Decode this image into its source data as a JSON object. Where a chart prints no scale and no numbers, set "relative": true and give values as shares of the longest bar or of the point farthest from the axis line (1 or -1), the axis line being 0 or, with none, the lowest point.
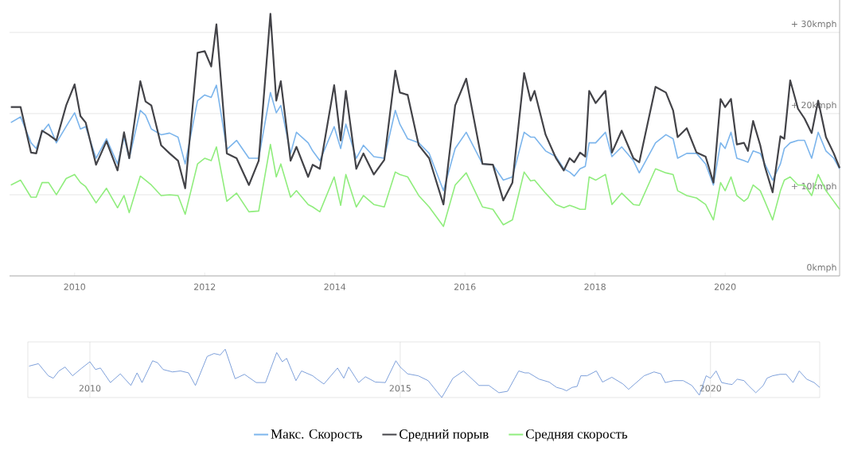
{
  "chart_data": [
    {
      "type": "line",
      "x": [
        2009.02,
        2009.17,
        2009.33,
        2009.41,
        2009.5,
        2009.6,
        2009.72,
        2009.87,
        2010.0,
        2010.09,
        2010.17,
        2010.33,
        2010.49,
        2010.66,
        2010.76,
        2010.84,
        2011.01,
        2011.09,
        2011.18,
        2011.33,
        2011.46,
        2011.59,
        2011.7,
        2011.89,
        2012.0,
        2012.1,
        2012.18,
        2012.34,
        2012.49,
        2012.68,
        2012.83,
        2013.01,
        2013.1,
        2013.17,
        2013.32,
        2013.41,
        2013.59,
        2013.66,
        2013.77,
        2013.99,
        2014.09,
        2014.17,
        2014.33,
        2014.44,
        2014.6,
        2014.76,
        2014.93,
        2015.0,
        2015.12,
        2015.29,
        2015.45,
        2015.67,
        2015.85,
        2016.02,
        2016.27,
        2016.43,
        2016.59,
        2016.73,
        2016.91,
        2017.01,
        2017.07,
        2017.24,
        2017.4,
        2017.52,
        2017.61,
        2017.68,
        2017.77,
        2017.85,
        2017.91,
        2018.01,
        2018.16,
        2018.26,
        2018.41,
        2018.59,
        2018.68,
        2018.93,
        2019.09,
        2019.2,
        2019.27,
        2019.41,
        2019.56,
        2019.7,
        2019.82,
        2019.93,
        2020.0,
        2020.09,
        2020.18,
        2020.29,
        2020.35,
        2020.43,
        2020.54,
        2020.61,
        2020.73,
        2020.85,
        2020.91,
        2021.0,
        2021.12,
        2021.22,
        2021.33,
        2021.43,
        2021.55,
        2021.67,
        2021.76
      ],
      "series": [
        {
          "name": "Макс. Скорость",
          "color": "#7cb5ec",
          "values": [
            18.9,
            19.6,
            16.4,
            15.7,
            17.7,
            18.7,
            16.4,
            18.4,
            20.1,
            18.1,
            18.4,
            14.5,
            16.9,
            13.8,
            17.1,
            14.5,
            20.4,
            19.8,
            18.1,
            17.4,
            17.6,
            17.1,
            13.8,
            21.6,
            22.3,
            22.0,
            23.5,
            15.6,
            16.7,
            14.5,
            14.5,
            22.6,
            20.1,
            21.0,
            15.1,
            17.7,
            16.4,
            15.4,
            14.2,
            18.4,
            15.7,
            18.7,
            14.5,
            16.1,
            14.7,
            14.5,
            20.4,
            18.7,
            16.9,
            16.4,
            15.1,
            10.5,
            15.7,
            17.7,
            13.8,
            13.7,
            11.8,
            12.2,
            17.7,
            17.1,
            17.1,
            15.4,
            14.7,
            13.2,
            12.8,
            12.3,
            13.2,
            13.5,
            16.4,
            16.4,
            17.7,
            14.7,
            15.9,
            14.2,
            12.7,
            16.4,
            17.4,
            16.9,
            14.5,
            15.1,
            15.1,
            13.8,
            11.2,
            16.4,
            15.7,
            17.7,
            14.5,
            14.2,
            14.0,
            15.4,
            15.1,
            13.8,
            11.8,
            13.8,
            15.7,
            16.4,
            16.7,
            16.7,
            14.5,
            17.7,
            15.4,
            14.5,
            13.2
          ]
        },
        {
          "name": "Средний порыв",
          "color": "#434348",
          "values": [
            20.8,
            20.8,
            15.2,
            15.1,
            17.9,
            17.4,
            16.7,
            21.0,
            23.6,
            19.7,
            18.9,
            13.7,
            16.6,
            13.0,
            17.7,
            14.5,
            24.0,
            21.5,
            21.0,
            16.1,
            15.1,
            14.2,
            10.8,
            27.5,
            27.7,
            25.8,
            31.0,
            15.1,
            14.5,
            11.2,
            14.2,
            32.3,
            21.6,
            24.0,
            14.2,
            15.9,
            12.2,
            13.7,
            13.2,
            23.5,
            16.7,
            22.8,
            13.2,
            15.1,
            12.5,
            14.3,
            25.3,
            22.6,
            22.3,
            16.1,
            14.5,
            8.8,
            21.0,
            24.3,
            13.8,
            13.7,
            9.3,
            11.5,
            25.0,
            21.6,
            22.8,
            17.4,
            14.5,
            13.0,
            14.5,
            14.0,
            15.2,
            14.7,
            22.8,
            21.3,
            22.8,
            15.2,
            17.9,
            14.5,
            14.0,
            23.3,
            22.6,
            20.4,
            17.1,
            18.2,
            15.2,
            14.7,
            11.5,
            21.8,
            20.8,
            21.8,
            16.2,
            16.4,
            15.4,
            19.1,
            16.1,
            13.5,
            10.3,
            17.2,
            16.9,
            24.1,
            20.6,
            19.4,
            17.6,
            21.6,
            17.1,
            15.1,
            13.3
          ]
        },
        {
          "name": "Средняя скорость",
          "color": "#90ed7d",
          "values": [
            11.2,
            11.8,
            9.7,
            9.7,
            11.5,
            11.5,
            10.0,
            12.0,
            12.5,
            11.5,
            11.0,
            9.0,
            10.8,
            8.4,
            9.9,
            7.8,
            12.3,
            11.8,
            11.2,
            9.9,
            10.0,
            9.9,
            7.6,
            13.8,
            14.5,
            14.2,
            15.9,
            9.2,
            10.2,
            7.9,
            8.0,
            16.2,
            12.2,
            13.8,
            9.7,
            10.5,
            8.8,
            8.5,
            7.9,
            12.2,
            8.7,
            12.5,
            8.5,
            9.9,
            8.8,
            8.5,
            12.8,
            12.5,
            12.2,
            9.9,
            8.5,
            6.1,
            11.2,
            12.7,
            8.5,
            8.2,
            6.3,
            6.9,
            12.8,
            11.7,
            11.8,
            10.2,
            8.8,
            8.4,
            8.7,
            8.5,
            8.2,
            8.2,
            12.2,
            11.8,
            12.5,
            8.8,
            10.2,
            8.8,
            8.7,
            13.2,
            12.7,
            12.5,
            10.5,
            9.9,
            9.6,
            8.8,
            6.9,
            11.5,
            10.5,
            12.2,
            9.9,
            9.2,
            9.6,
            11.2,
            10.5,
            9.2,
            6.9,
            10.5,
            11.8,
            12.2,
            11.2,
            11.2,
            9.9,
            12.5,
            10.5,
            9.2,
            8.2
          ]
        }
      ],
      "xlim": [
        2009.0,
        2021.76
      ],
      "xticks": [
        2010,
        2012,
        2014,
        2016,
        2018,
        2020
      ],
      "ylim": [
        0,
        34
      ],
      "yticks": [
        {
          "value": 0,
          "label": "0kmph"
        },
        {
          "value": 10,
          "label": "+ 10kmph"
        },
        {
          "value": 20,
          "label": "+ 20kmph"
        },
        {
          "value": 30,
          "label": "+ 30kmph"
        }
      ],
      "grid": "y",
      "legend": "bottom"
    },
    {
      "type": "line",
      "x": [
        2009.02,
        2009.17,
        2009.33,
        2009.41,
        2009.5,
        2009.6,
        2009.72,
        2009.87,
        2010.0,
        2010.09,
        2010.17,
        2010.33,
        2010.49,
        2010.66,
        2010.76,
        2010.84,
        2011.01,
        2011.09,
        2011.18,
        2011.33,
        2011.46,
        2011.59,
        2011.7,
        2011.89,
        2012.0,
        2012.1,
        2012.18,
        2012.34,
        2012.49,
        2012.68,
        2012.83,
        2013.01,
        2013.1,
        2013.17,
        2013.32,
        2013.41,
        2013.59,
        2013.66,
        2013.77,
        2013.99,
        2014.09,
        2014.17,
        2014.33,
        2014.44,
        2014.6,
        2014.76,
        2014.93,
        2015.0,
        2015.12,
        2015.29,
        2015.45,
        2015.67,
        2015.85,
        2016.02,
        2016.27,
        2016.43,
        2016.59,
        2016.73,
        2016.91,
        2017.01,
        2017.07,
        2017.24,
        2017.4,
        2017.52,
        2017.61,
        2017.68,
        2017.77,
        2017.85,
        2017.91,
        2018.01,
        2018.16,
        2018.26,
        2018.41,
        2018.59,
        2018.68,
        2018.93,
        2019.09,
        2019.2,
        2019.27,
        2019.41,
        2019.56,
        2019.7,
        2019.82,
        2019.93,
        2020.0,
        2020.09,
        2020.18,
        2020.29,
        2020.35,
        2020.43,
        2020.54,
        2020.61,
        2020.73,
        2020.85,
        2020.91,
        2021.0,
        2021.12,
        2021.22,
        2021.33,
        2021.43,
        2021.55,
        2021.67,
        2021.76
      ],
      "series": [
        {
          "color": "#6f95d6",
          "values": [
            0.65,
            0.7,
            0.45,
            0.4,
            0.55,
            0.63,
            0.45,
            0.61,
            0.74,
            0.58,
            0.61,
            0.31,
            0.49,
            0.25,
            0.51,
            0.31,
            0.76,
            0.72,
            0.58,
            0.53,
            0.55,
            0.51,
            0.25,
            0.85,
            0.91,
            0.88,
            1,
            0.39,
            0.48,
            0.31,
            0.31,
            0.93,
            0.74,
            0.81,
            0.35,
            0.55,
            0.45,
            0.38,
            0.28,
            0.61,
            0.4,
            0.63,
            0.31,
            0.43,
            0.32,
            0.31,
            0.76,
            0.63,
            0.49,
            0.45,
            0.35,
            0,
            0.4,
            0.55,
            0.25,
            0.25,
            0.1,
            0.13,
            0.55,
            0.51,
            0.51,
            0.38,
            0.32,
            0.21,
            0.18,
            0.14,
            0.21,
            0.23,
            0.45,
            0.45,
            0.55,
            0.32,
            0.42,
            0.28,
            0.17,
            0.45,
            0.53,
            0.49,
            0.31,
            0.35,
            0.35,
            0.25,
            0.05,
            0.45,
            0.4,
            0.55,
            0.31,
            0.28,
            0.27,
            0.38,
            0.35,
            0.25,
            0.1,
            0.25,
            0.4,
            0.45,
            0.48,
            0.48,
            0.31,
            0.55,
            0.38,
            0.31,
            0.21
          ]
        }
      ],
      "xlim": [
        2009.0,
        2021.76
      ],
      "xticks": [
        2010,
        2015,
        2020
      ],
      "relative": true,
      "grid": "x"
    }
  ]
}
